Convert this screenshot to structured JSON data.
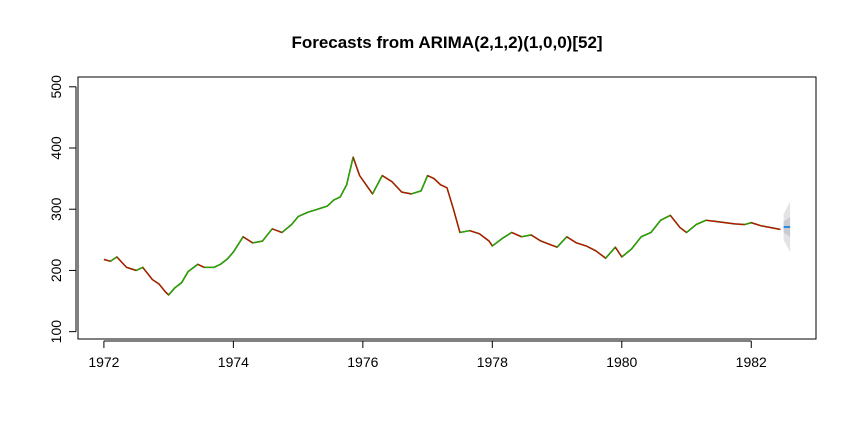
{
  "chart_data": {
    "type": "line",
    "title": "Forecasts from ARIMA(2,1,2)(1,0,0)[52]",
    "xlabel": "",
    "ylabel": "",
    "xlim": [
      1971.6,
      1983.0
    ],
    "ylim": [
      88,
      516
    ],
    "x_ticks": [
      1972,
      1974,
      1976,
      1978,
      1980,
      1982
    ],
    "x_tick_labels": [
      "1972",
      "1974",
      "1976",
      "1978",
      "1980",
      "1982"
    ],
    "y_ticks": [
      100,
      200,
      300,
      400,
      500
    ],
    "y_tick_labels": [
      "100",
      "200",
      "300",
      "400",
      "500"
    ],
    "grid": false,
    "legend": "none",
    "colors": {
      "observed_up": "#00cc00",
      "observed_down": "#dd0000",
      "observed_line": "#555500",
      "forecast_line": "#2b8ae0",
      "interval_80": "#c9cbd2",
      "interval_95": "#e3e3e5"
    },
    "series": [
      {
        "kind": "observed",
        "x": [
          1972.0,
          1972.1,
          1972.2,
          1972.35,
          1972.5,
          1972.6,
          1972.75,
          1972.85,
          1972.95,
          1973.0,
          1973.1,
          1973.2,
          1973.3,
          1973.45,
          1973.55,
          1973.7,
          1973.8,
          1973.9,
          1974.0,
          1974.15,
          1974.3,
          1974.45,
          1974.6,
          1974.75,
          1974.9,
          1975.0,
          1975.15,
          1975.3,
          1975.45,
          1975.55,
          1975.65,
          1975.75,
          1975.85,
          1975.95,
          1976.05,
          1976.15,
          1976.3,
          1976.45,
          1976.6,
          1976.75,
          1976.9,
          1977.0,
          1977.1,
          1977.2,
          1977.3,
          1977.4,
          1977.5,
          1977.65,
          1977.8,
          1977.95,
          1978.0,
          1978.15,
          1978.3,
          1978.45,
          1978.6,
          1978.75,
          1978.9,
          1979.0,
          1979.15,
          1979.3,
          1979.45,
          1979.6,
          1979.75,
          1979.9,
          1980.0,
          1980.15,
          1980.3,
          1980.45,
          1980.6,
          1980.75,
          1980.9,
          1981.0,
          1981.15,
          1981.3,
          1981.45,
          1981.6,
          1981.75,
          1981.9,
          1982.0,
          1982.15,
          1982.3,
          1982.45
        ],
        "values": [
          218,
          215,
          222,
          205,
          200,
          205,
          185,
          178,
          165,
          160,
          172,
          180,
          198,
          210,
          205,
          205,
          210,
          218,
          230,
          255,
          245,
          248,
          268,
          262,
          275,
          288,
          295,
          300,
          305,
          315,
          320,
          340,
          385,
          355,
          340,
          325,
          355,
          345,
          328,
          325,
          330,
          355,
          350,
          340,
          335,
          300,
          262,
          265,
          260,
          248,
          240,
          252,
          262,
          255,
          258,
          248,
          242,
          238,
          255,
          245,
          240,
          232,
          220,
          238,
          222,
          235,
          255,
          262,
          282,
          290,
          270,
          262,
          275,
          282,
          280,
          278,
          276,
          275,
          278,
          273,
          270,
          267
        ]
      },
      {
        "kind": "forecast",
        "x": [
          1982.5,
          1982.6
        ],
        "values": [
          271,
          271
        ],
        "interval_80": {
          "lower": [
            262,
            255
          ],
          "upper": [
            280,
            287
          ]
        },
        "interval_95": {
          "lower": [
            250,
            230
          ],
          "upper": [
            292,
            312
          ]
        }
      }
    ]
  }
}
